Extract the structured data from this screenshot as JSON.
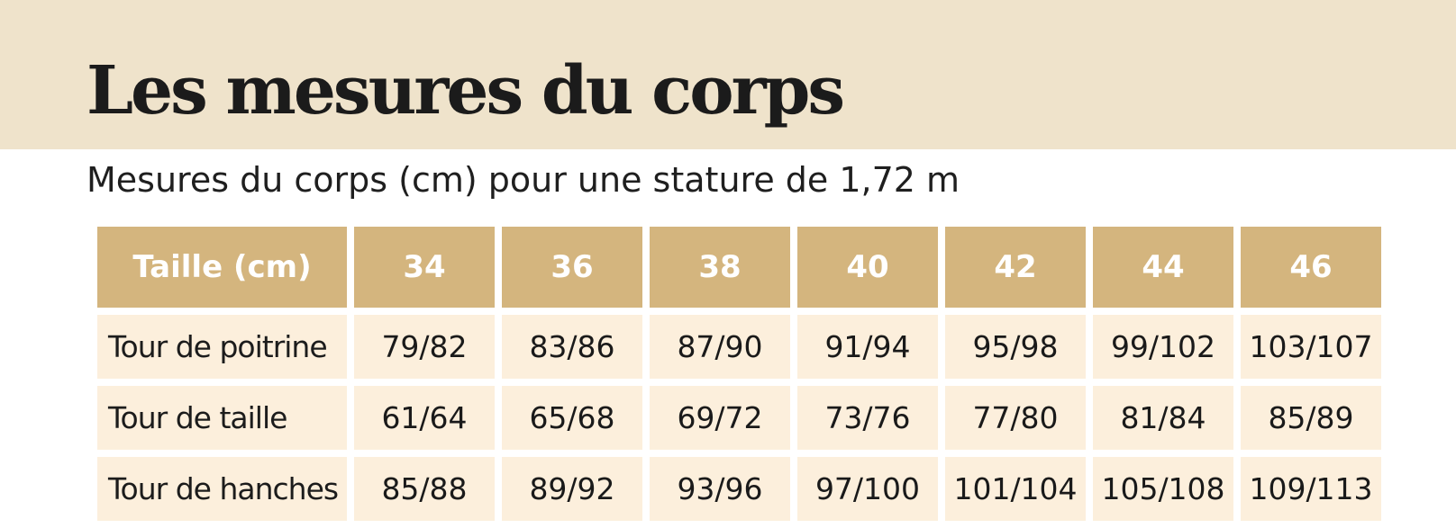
{
  "title": "Les mesures du corps",
  "subtitle": "Mesures du corps (cm) pour une stature de 1,72 m",
  "table": {
    "header_label": "Taille (cm)",
    "sizes": [
      "34",
      "36",
      "38",
      "40",
      "42",
      "44",
      "46"
    ],
    "rows": [
      {
        "label": "Tour de poitrine",
        "values": [
          "79/82",
          "83/86",
          "87/90",
          "91/94",
          "95/98",
          "99/102",
          "103/107"
        ]
      },
      {
        "label": "Tour de taille",
        "values": [
          "61/64",
          "65/68",
          "69/72",
          "73/76",
          "77/80",
          "81/84",
          "85/89"
        ]
      },
      {
        "label": "Tour de hanches",
        "values": [
          "85/88",
          "89/92",
          "93/96",
          "97/100",
          "101/104",
          "105/108",
          "109/113"
        ]
      }
    ]
  },
  "colors": {
    "header_band": "#efe3cb",
    "table_header": "#d4b57e",
    "table_cell": "#fcefdc"
  }
}
